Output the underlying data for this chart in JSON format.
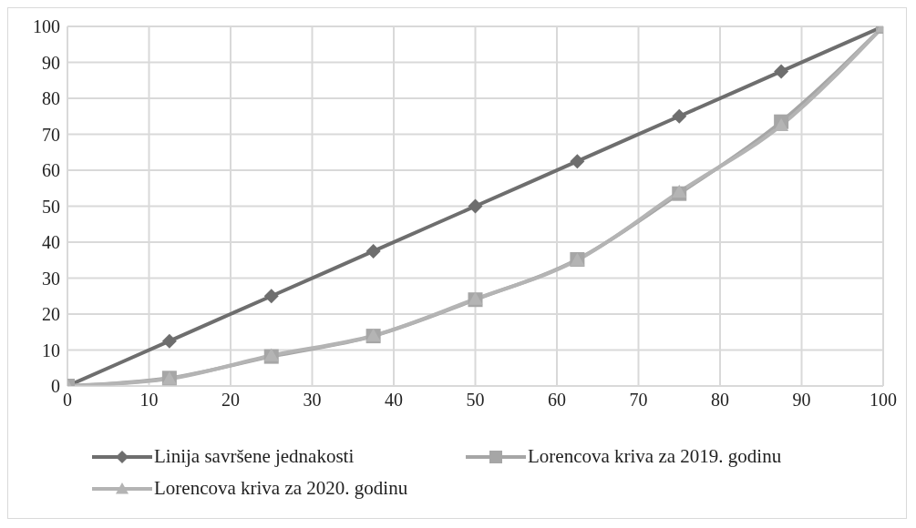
{
  "chart_data": {
    "type": "line",
    "x": [
      0,
      12.5,
      25,
      37.5,
      50,
      62.5,
      75,
      87.5,
      100
    ],
    "series": [
      {
        "name": "Linija savršene jednakosti",
        "color": "#6e6e6e",
        "marker": "diamond",
        "values": [
          0,
          12.5,
          25,
          37.5,
          50,
          62.5,
          75,
          87.5,
          100
        ]
      },
      {
        "name": "Lorencova kriva za 2019. godinu",
        "color": "#a6a6a6",
        "marker": "square",
        "values": [
          0,
          2.2,
          8.2,
          13.9,
          24,
          35.2,
          53.5,
          73.5,
          100
        ]
      },
      {
        "name": "Lorencova kriva za 2020. godinu",
        "color": "#b4b4b4",
        "marker": "triangle",
        "values": [
          0,
          2,
          8.5,
          14,
          24.2,
          35,
          54,
          72.5,
          100
        ]
      }
    ],
    "xlim": [
      0,
      100
    ],
    "xticks": [
      0,
      10,
      20,
      30,
      40,
      50,
      60,
      70,
      80,
      90,
      100
    ],
    "ylim": [
      0,
      100
    ],
    "yticks": [
      0,
      10,
      20,
      30,
      40,
      50,
      60,
      70,
      80,
      90,
      100
    ],
    "grid": true,
    "legend": "bottom",
    "line_style": "solid"
  }
}
